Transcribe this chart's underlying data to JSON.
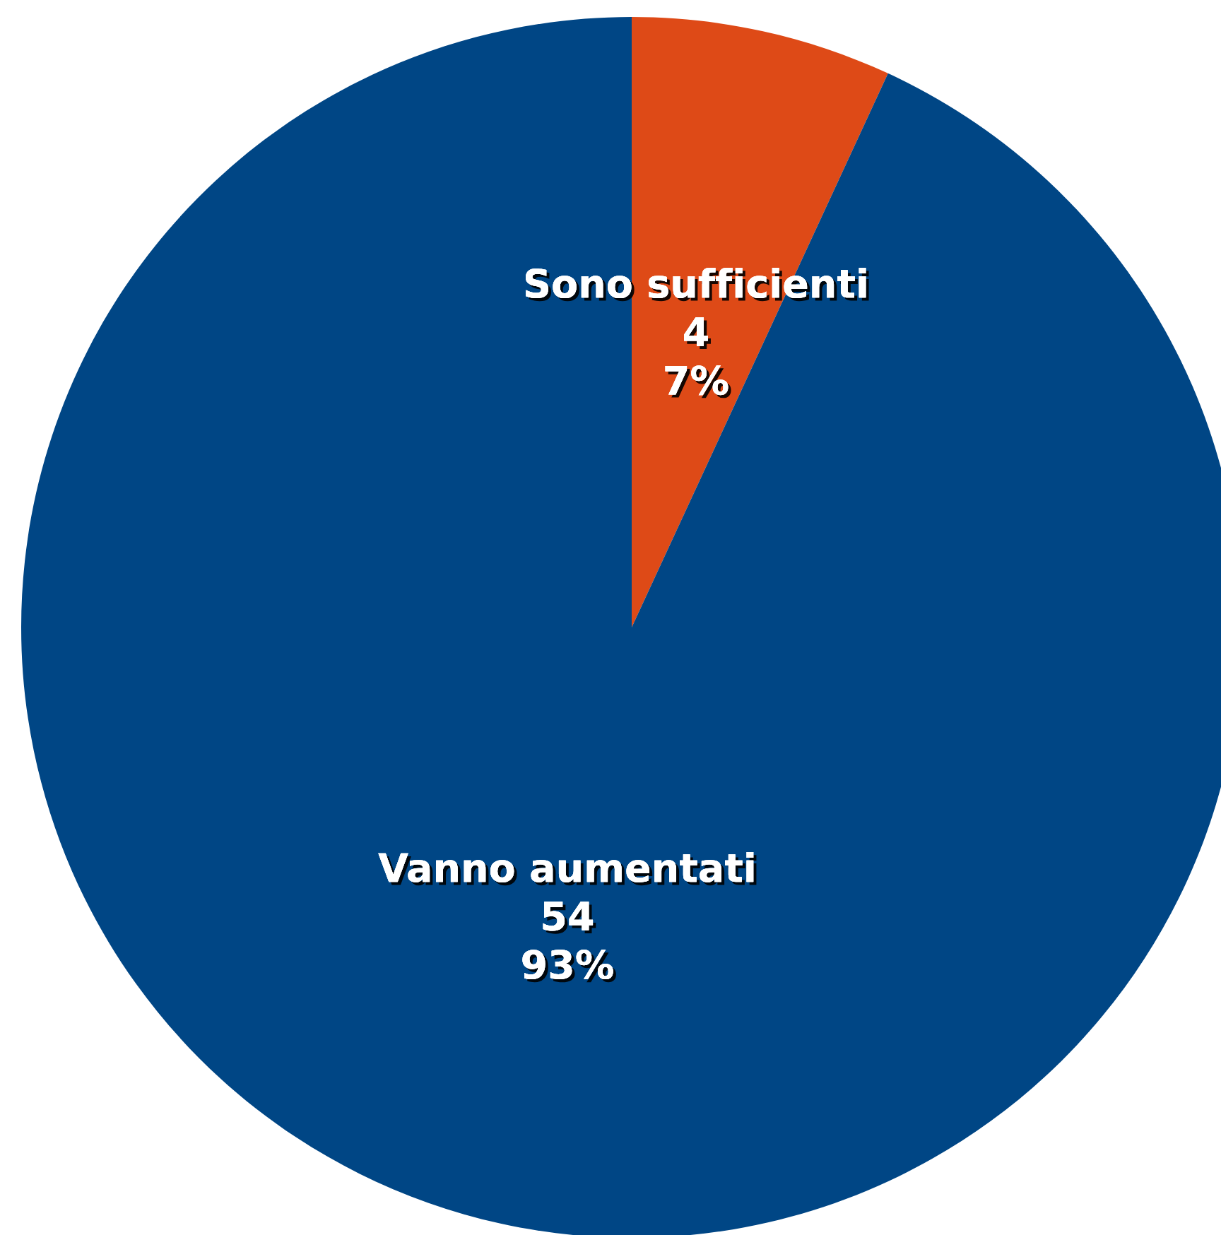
{
  "chart_data": {
    "type": "pie",
    "categories": [
      "Sono sufficienti",
      "Vanno aumentati"
    ],
    "values": [
      4,
      54
    ],
    "colors": [
      "#de4a17",
      "#004685"
    ],
    "value_labels": [
      "4\n7%",
      "54\n93%"
    ]
  }
}
